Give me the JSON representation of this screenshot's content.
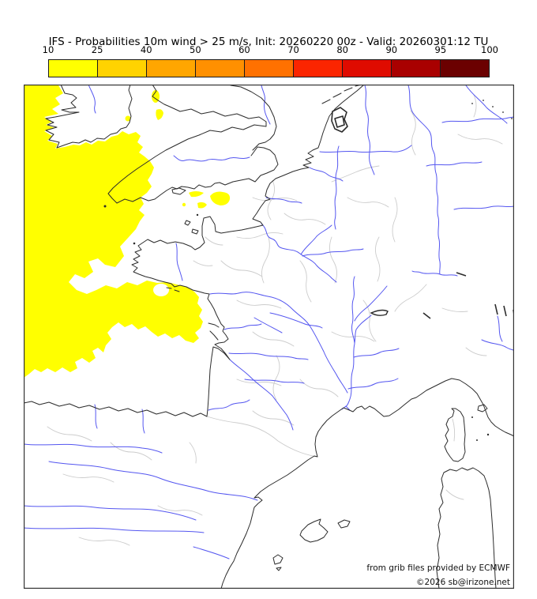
{
  "title": "IFS - Probabilities 10m wind > 25 m/s, Init: 20260220 00z - Valid: 20260301:12 TU",
  "colorbar": {
    "tick_labels": [
      "10",
      "25",
      "40",
      "50",
      "60",
      "70",
      "80",
      "90",
      "95",
      "100"
    ],
    "segment_colors": [
      "#ffff00",
      "#ffd300",
      "#ffa600",
      "#ff9000",
      "#ff7100",
      "#fb2500",
      "#df0b00",
      "#a90000",
      "#6b0000"
    ],
    "border_color": "#1a1a1a"
  },
  "map": {
    "credit_line1": "from grib files provided by ECMWF",
    "credit_line2": "©2026 sb@irizone.net",
    "colors": {
      "coastline": "#2b2b2b",
      "river": "#5456f0",
      "admin_boundary": "#cccccc",
      "probability_low_fill": "#ffff00",
      "sea_fill": "#ffffff",
      "frame": "#333333"
    },
    "probability_regions": [
      "atlantic-and-bay-of-biscay",
      "celtic-sea",
      "english-channel-patches",
      "st-georges-channel-patches"
    ]
  }
}
